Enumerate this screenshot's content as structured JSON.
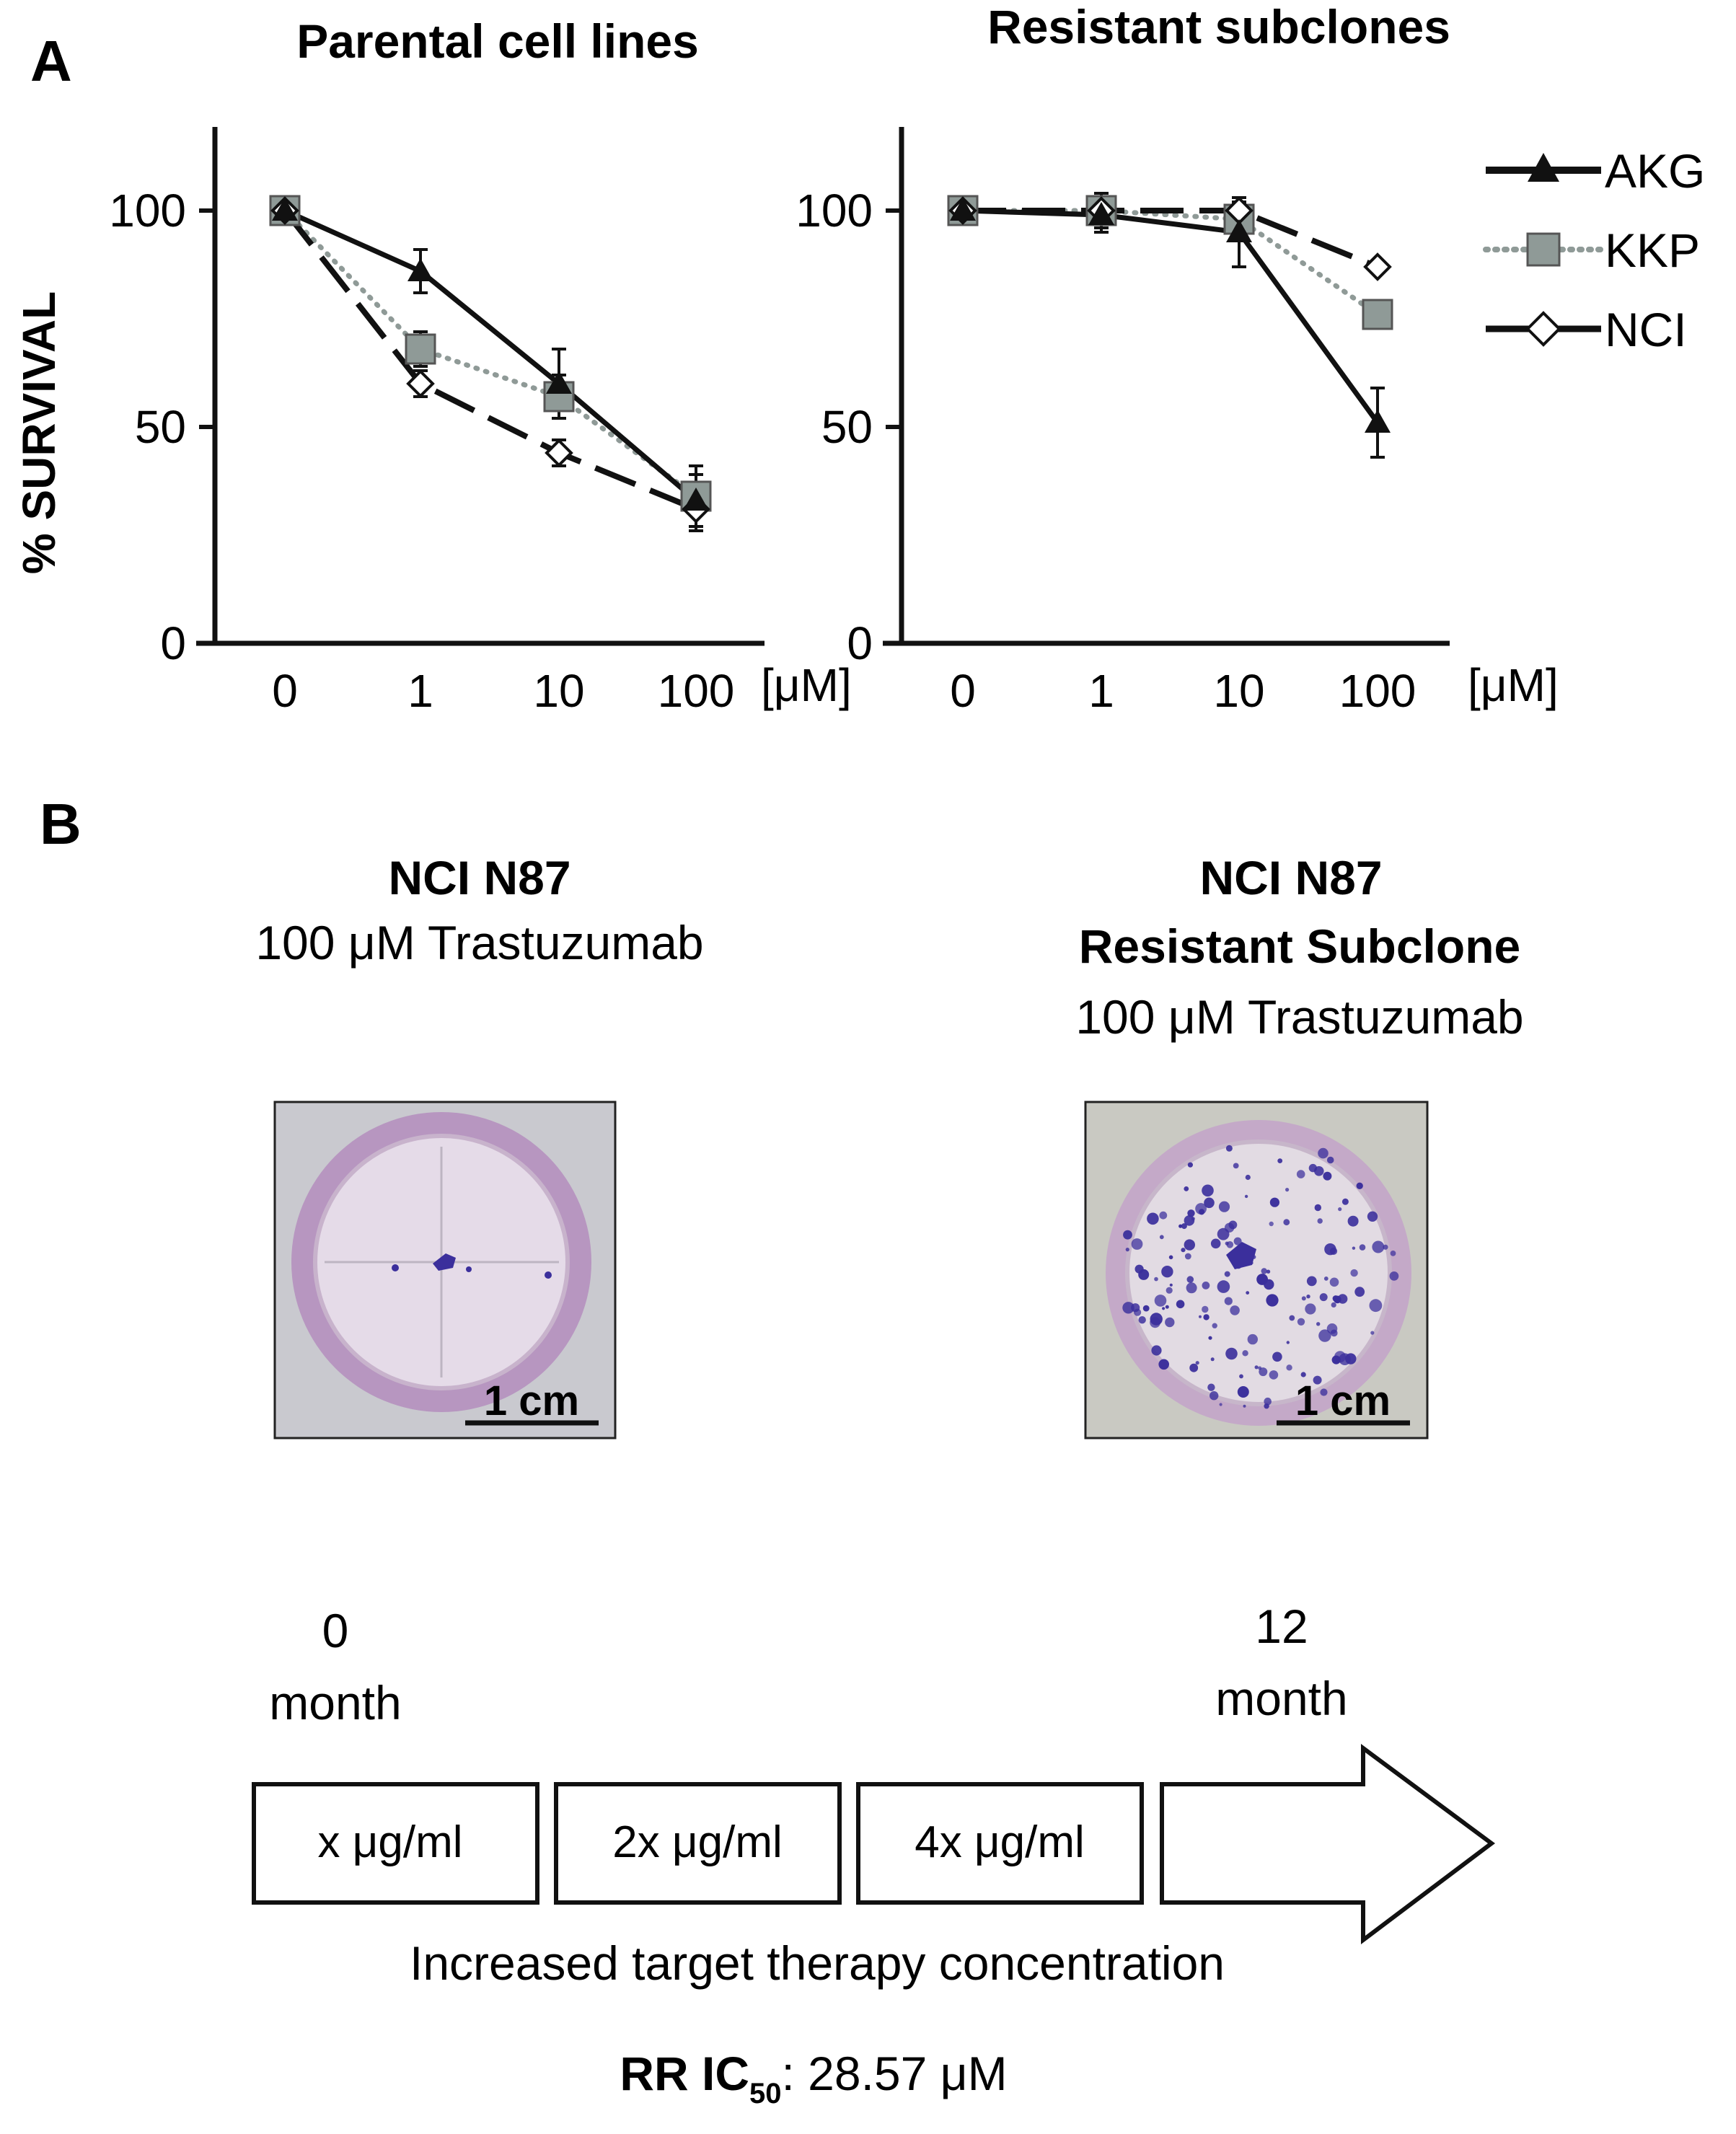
{
  "panel_a": {
    "label": "A",
    "y_axis_label": "% SURVIVAL",
    "x_unit": "[μM]"
  },
  "chart_data": [
    {
      "type": "line",
      "title": "Parental cell lines",
      "xlabel": "[μM]",
      "ylabel": "% SURVIVAL",
      "categories": [
        "0",
        "1",
        "10",
        "100"
      ],
      "y_ticks": [
        "0",
        "50",
        "100"
      ],
      "ylim": [
        0,
        120
      ],
      "series": [
        {
          "name": "AKG",
          "values": [
            100,
            86,
            60,
            33
          ],
          "errors": [
            0,
            5,
            8,
            6
          ]
        },
        {
          "name": "KKP",
          "values": [
            100,
            68,
            57,
            34
          ],
          "errors": [
            0,
            4,
            5,
            7
          ]
        },
        {
          "name": "NCI",
          "values": [
            100,
            60,
            44,
            31
          ],
          "errors": [
            0,
            3,
            3,
            5
          ]
        }
      ]
    },
    {
      "type": "line",
      "title": "Resistant subclones",
      "xlabel": "[μM]",
      "ylabel": "% SURVIVAL",
      "categories": [
        "0",
        "1",
        "10",
        "100"
      ],
      "y_ticks": [
        "0",
        "50",
        "100"
      ],
      "ylim": [
        0,
        120
      ],
      "series": [
        {
          "name": "AKG",
          "values": [
            100,
            99,
            95,
            51
          ],
          "errors": [
            0,
            4,
            8,
            8
          ]
        },
        {
          "name": "KKP",
          "values": [
            100,
            100,
            98,
            76
          ],
          "errors": [
            0,
            4,
            3,
            0
          ]
        },
        {
          "name": "NCI",
          "values": [
            100,
            100,
            100,
            87
          ],
          "errors": [
            0,
            2,
            2,
            0
          ]
        }
      ]
    }
  ],
  "legend": [
    {
      "name": "AKG",
      "line": "solid",
      "color": "#111111",
      "marker": "triangle"
    },
    {
      "name": "KKP",
      "line": "dotted",
      "color": "#8f9a97",
      "marker": "square"
    },
    {
      "name": "NCI",
      "line": "dashed",
      "color": "#111111",
      "marker": "diamond"
    }
  ],
  "panel_b": {
    "label": "B",
    "left": {
      "title": "NCI N87",
      "subtitle": "100 μM Trastuzumab",
      "scale_bar": "1 cm"
    },
    "right": {
      "title_line1": "NCI N87",
      "title_line2": "Resistant Subclone",
      "subtitle": "100 μM Trastuzumab",
      "scale_bar": "1 cm"
    }
  },
  "timeline": {
    "start_value": "0",
    "start_unit": "month",
    "end_value": "12",
    "end_unit": "month",
    "steps": [
      "x μg/ml",
      "2x μg/ml",
      "4x μg/ml"
    ],
    "caption": "Increased target therapy concentration",
    "result_label_main": "RR IC",
    "result_label_sub": "50",
    "result_value": ": 28.57 μM"
  },
  "colors": {
    "axis": "#111111",
    "marker_gray": "#8f9a97",
    "stain": "#3b2f9c",
    "plate_purple": "#b796c0"
  }
}
